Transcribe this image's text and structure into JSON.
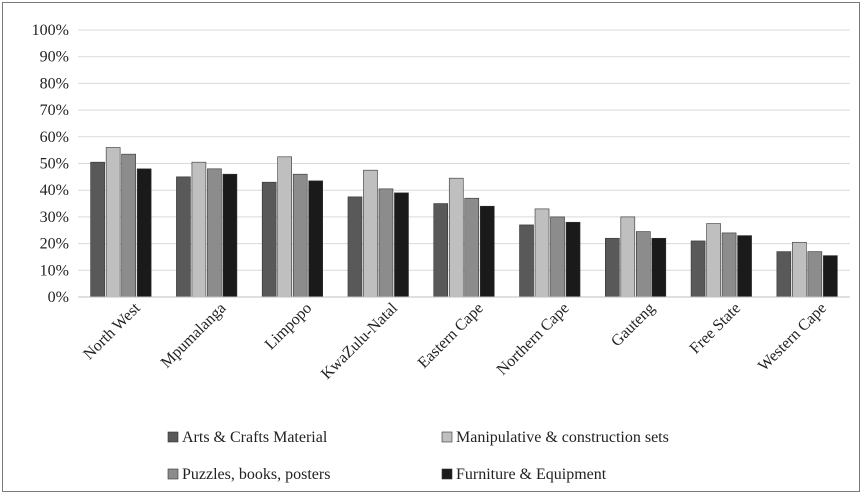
{
  "chart_data": {
    "type": "bar",
    "title": "",
    "xlabel": "",
    "ylabel": "",
    "ylim": [
      0,
      100
    ],
    "y_tick_labels": [
      "0%",
      "10%",
      "20%",
      "30%",
      "40%",
      "50%",
      "60%",
      "70%",
      "80%",
      "90%",
      "100%"
    ],
    "grid": true,
    "legend_position": "bottom",
    "categories": [
      "North West",
      "Mpumalanga",
      "Limpopo",
      "KwaZulu-Natal",
      "Eastern Cape",
      "Northern Cape",
      "Gauteng",
      "Free State",
      "Western Cape"
    ],
    "series": [
      {
        "name": "Arts & Crafts Material",
        "color": "#595959",
        "values": [
          50.5,
          45,
          43,
          37.5,
          35,
          27,
          22,
          21,
          17
        ]
      },
      {
        "name": "Manipulative & construction sets",
        "color": "#bfbfbf",
        "values": [
          56,
          50.5,
          52.5,
          47.5,
          44.5,
          33,
          30,
          27.5,
          20.5
        ]
      },
      {
        "name": "Puzzles, books, posters",
        "color": "#8c8c8c",
        "values": [
          53.5,
          48,
          46,
          40.5,
          37,
          30,
          24.5,
          24,
          17
        ]
      },
      {
        "name": "Furniture & Equipment",
        "color": "#1a1a1a",
        "values": [
          48,
          46,
          43.5,
          39,
          34,
          28,
          22,
          23,
          15.5
        ]
      }
    ],
    "legend_rows": [
      [
        "Arts & Crafts Material",
        "Manipulative & construction sets"
      ],
      [
        "Puzzles, books, posters",
        "Furniture & Equipment"
      ]
    ]
  }
}
